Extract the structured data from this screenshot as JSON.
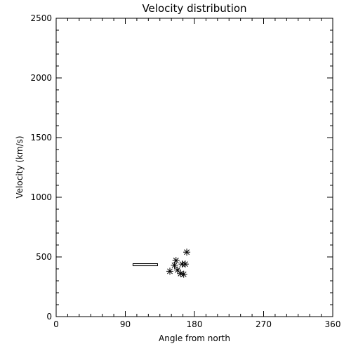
{
  "chart_data": {
    "type": "scatter",
    "title": "Velocity distribution",
    "xlabel": "Angle from north",
    "ylabel": "Velocity (km/s)",
    "xlim": [
      0,
      360
    ],
    "ylim": [
      0,
      2500
    ],
    "x_ticks": [
      0,
      90,
      180,
      270,
      360
    ],
    "y_ticks": [
      0,
      500,
      1000,
      1500,
      2000,
      2500
    ],
    "grid": false,
    "legend": "none",
    "series": [
      {
        "marker": "asterisk",
        "points": [
          {
            "x": 156,
            "y": 470
          },
          {
            "x": 170,
            "y": 540
          },
          {
            "x": 154,
            "y": 430
          },
          {
            "x": 164,
            "y": 440
          },
          {
            "x": 168,
            "y": 440
          },
          {
            "x": 148,
            "y": 380
          },
          {
            "x": 158,
            "y": 390
          },
          {
            "x": 162,
            "y": 360
          },
          {
            "x": 166,
            "y": 355
          }
        ]
      },
      {
        "marker": "range-bar",
        "x_start": 100,
        "x_end": 132,
        "y": 435
      }
    ]
  },
  "colors": {
    "axis": "#000000",
    "marker": "#000000",
    "background": "#ffffff"
  }
}
